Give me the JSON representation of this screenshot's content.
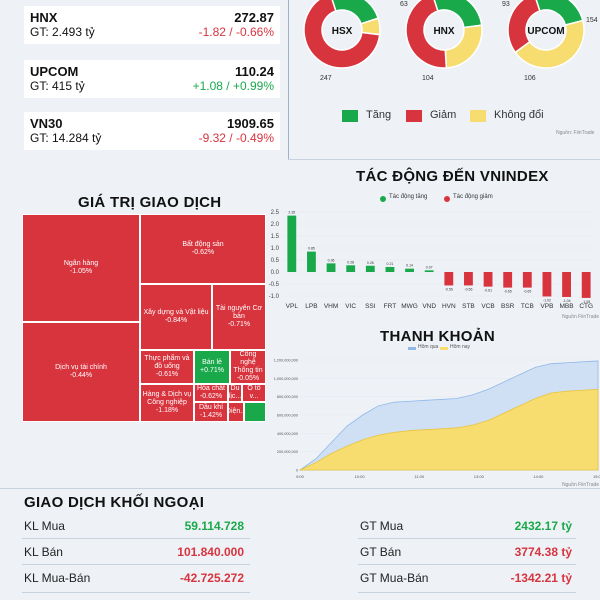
{
  "indices": [
    {
      "name": "HNX",
      "value": "272.87",
      "gt": "GT: 2.493 tỷ",
      "change": "-1.82 / -0.66%",
      "dir": "neg"
    },
    {
      "name": "UPCOM",
      "value": "110.24",
      "gt": "GT: 415 tỷ",
      "change": "+1.08 / +0.99%",
      "dir": "pos"
    },
    {
      "name": "VN30",
      "value": "1909.65",
      "gt": "GT: 14.284 tỷ",
      "change": "-9.32 / -0.49%",
      "dir": "neg"
    }
  ],
  "donuts": [
    {
      "label": "HSX",
      "up": null,
      "down": 247,
      "flat": null,
      "up_share": 0.25,
      "down_share": 0.68,
      "flat_share": 0.07
    },
    {
      "label": "HNX",
      "up": 63,
      "down": 104,
      "flat": null,
      "up_share": 0.28,
      "down_share": 0.46,
      "flat_share": 0.26
    },
    {
      "label": "UPCOM",
      "up": 93,
      "down": 106,
      "flat": 154,
      "up_share": 0.26,
      "down_share": 0.3,
      "flat_share": 0.44
    }
  ],
  "donut_legend": [
    {
      "label": "Tăng",
      "color": "#19a94a"
    },
    {
      "label": "Giảm",
      "color": "#d8343e"
    },
    {
      "label": "Không đổi",
      "color": "#f7dc6f"
    }
  ],
  "source_label": "Nguồn: FiinTrade",
  "source_label_short": "Nguồn FiinTrade",
  "treemap_title": "GIÁ TRỊ GIAO DỊCH",
  "treemap": [
    {
      "name": "Ngân hàng",
      "pct": "-1.05%",
      "dir": "neg"
    },
    {
      "name": "Bất động sản",
      "pct": "-0.62%",
      "dir": "neg"
    },
    {
      "name": "Dịch vụ tài chính",
      "pct": "-0.44%",
      "dir": "neg"
    },
    {
      "name": "Xây dựng và Vật liệu",
      "pct": "-0.84%",
      "dir": "neg"
    },
    {
      "name": "Tài nguyên Cơ bản",
      "pct": "-0.71%",
      "dir": "neg"
    },
    {
      "name": "Thực phẩm và đồ uống",
      "pct": "-0.61%",
      "dir": "neg"
    },
    {
      "name": "Bán lẻ",
      "pct": "+0.71%",
      "dir": "pos"
    },
    {
      "name": "Công nghệ Thông tin",
      "pct": "-0.05%",
      "dir": "neg"
    },
    {
      "name": "Hàng & Dịch vụ Công nghiệp",
      "pct": "-1.18%",
      "dir": "neg"
    },
    {
      "name": "Hóa chất",
      "pct": "-0.62%",
      "dir": "neg"
    },
    {
      "name": "Du lịc...",
      "pct": "",
      "dir": "neg"
    },
    {
      "name": "Ô tô v...",
      "pct": "",
      "dir": "neg"
    },
    {
      "name": "Dầu khí",
      "pct": "-1.42%",
      "dir": "neg"
    },
    {
      "name": "Điện...",
      "pct": "",
      "dir": "neg"
    },
    {
      "name": "",
      "pct": "",
      "dir": "pos"
    }
  ],
  "impact_title": "TÁC ĐỘNG ĐẾN VNINDEX",
  "impact_legend": [
    {
      "label": "Tác động tăng",
      "color": "#19a94a"
    },
    {
      "label": "Tác động giảm",
      "color": "#d8343e"
    }
  ],
  "liquidity_title": "THANH KHOẢN",
  "liquidity_legend": [
    "Hôm qua",
    "Hôm nay"
  ],
  "chart_data": [
    {
      "type": "bar",
      "categories": [
        "VPL",
        "LPB",
        "VHM",
        "VIC",
        "SSI",
        "FRT",
        "MWG",
        "VND",
        "HVN",
        "STB",
        "VCB",
        "BSR",
        "TCB",
        "VPB",
        "MBB",
        "CTG"
      ],
      "values": [
        2.35,
        0.85,
        0.36,
        0.28,
        0.26,
        0.21,
        0.14,
        0.07,
        -0.56,
        -0.56,
        -0.61,
        -0.65,
        -0.65,
        -1.02,
        -1.04,
        -1.08
      ],
      "ylim": [
        -1.0,
        2.5
      ],
      "yticks": [
        "2.5",
        "2.0",
        "1.5",
        "1.0",
        "0.5",
        "0.0",
        "-0.5",
        "-1.0"
      ],
      "ylabel": "",
      "xlabel": ""
    },
    {
      "type": "area",
      "yticks": [
        "1,200,000,000",
        "1,000,000,000",
        "800,000,000",
        "600,000,000",
        "400,000,000",
        "200,000,000",
        "0"
      ],
      "ylim": [
        0,
        1200000000
      ],
      "xticks": [
        "9:00",
        "10:00",
        "11:00",
        "13:00",
        "14:00",
        "15:00"
      ],
      "series": [
        {
          "name": "Hôm qua",
          "values": [
            0,
            120,
            300,
            480,
            600,
            700,
            740,
            750,
            760,
            770,
            780,
            820,
            880,
            960,
            1040,
            1120,
            1160,
            1170,
            1180,
            1190
          ]
        },
        {
          "name": "Hôm nay",
          "values": [
            0,
            80,
            180,
            260,
            330,
            380,
            410,
            430,
            440,
            450,
            460,
            490,
            540,
            620,
            700,
            780,
            840,
            860,
            870,
            880
          ]
        }
      ]
    }
  ],
  "foreign_title": "GIAO DỊCH KHỐI NGOẠI",
  "foreign": {
    "left": [
      {
        "label": "KL Mua",
        "value": "59.114.728",
        "dir": "pos"
      },
      {
        "label": "KL Bán",
        "value": "101.840.000",
        "dir": "neg"
      },
      {
        "label": "KL Mua-Bán",
        "value": "-42.725.272",
        "dir": "neg"
      }
    ],
    "right": [
      {
        "label": "GT Mua",
        "value": "2432.17 tỷ",
        "dir": "pos"
      },
      {
        "label": "GT Bán",
        "value": "3774.38 tỷ",
        "dir": "neg"
      },
      {
        "label": "GT Mua-Bán",
        "value": "-1342.21 tỷ",
        "dir": "neg"
      }
    ]
  }
}
